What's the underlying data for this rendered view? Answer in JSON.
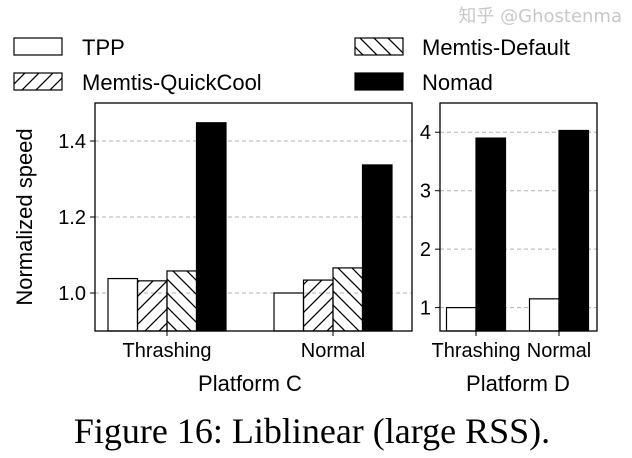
{
  "legend": [
    "TPP",
    "Memtis-QuickCool",
    "Memtis-Default",
    "Nomad"
  ],
  "caption": "Figure 16: Liblinear (large RSS).",
  "watermark": "知乎 @Ghostenma",
  "colors": {
    "bar_edge": "#000000",
    "nomad": "#000000",
    "grid": "#b0b0b0"
  },
  "chart_data": [
    {
      "type": "bar",
      "title": "",
      "xlabel": "Platform C",
      "ylabel": "Normalized speed",
      "categories": [
        "Thrashing",
        "Normal"
      ],
      "ylim": [
        0.9,
        1.5
      ],
      "yticks": [
        1.0,
        1.2,
        1.4
      ],
      "ytick_labels": [
        "1.0",
        "1.2",
        "1.4"
      ],
      "grid": "y dashed",
      "legend_position": "top",
      "series": [
        {
          "name": "TPP",
          "pattern": "none",
          "values": [
            1.038,
            1.0
          ]
        },
        {
          "name": "Memtis-QuickCool",
          "pattern": "forward-hatch",
          "values": [
            1.032,
            1.034
          ]
        },
        {
          "name": "Memtis-Default",
          "pattern": "back-hatch",
          "values": [
            1.058,
            1.066
          ]
        },
        {
          "name": "Nomad",
          "pattern": "solid-black",
          "values": [
            1.448,
            1.337
          ]
        }
      ]
    },
    {
      "type": "bar",
      "title": "",
      "xlabel": "Platform D",
      "ylabel": "",
      "categories": [
        "Thrashing",
        "Normal"
      ],
      "ylim": [
        0.6,
        4.5
      ],
      "yticks": [
        1,
        2,
        3,
        4
      ],
      "ytick_labels": [
        "1",
        "2",
        "3",
        "4"
      ],
      "grid": "y dashed",
      "series": [
        {
          "name": "TPP",
          "pattern": "none",
          "values": [
            1.0,
            1.15
          ]
        },
        {
          "name": "Nomad",
          "pattern": "solid-black",
          "values": [
            3.9,
            4.03
          ]
        }
      ]
    }
  ]
}
